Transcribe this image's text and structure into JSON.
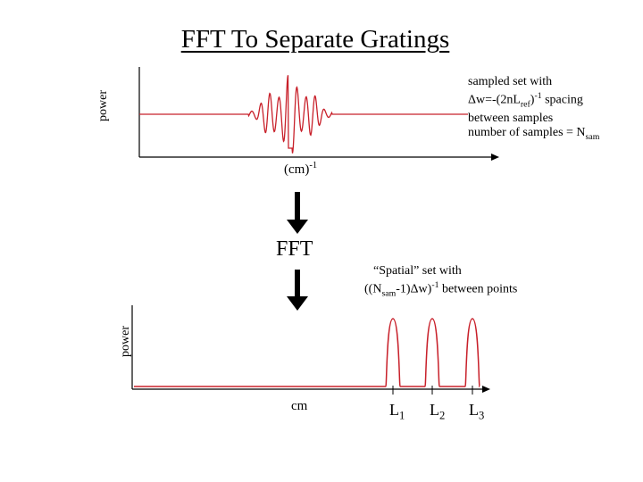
{
  "title": "FFT To Separate Gratings",
  "top_plot": {
    "ylabel": "power",
    "xunit": "(cm)",
    "xunit_sup": "-1",
    "annotation": {
      "line1": "sampled set with",
      "line2_a": "Δw=-(2nL",
      "line2_sub": "ref",
      "line2_b": ")",
      "line2_sup": "-1",
      "line2_c": " spacing",
      "line3": "between samples",
      "line4_a": "number of samples = N",
      "line4_sub": "sam"
    }
  },
  "fft_label": "FFT",
  "bottom_plot": {
    "ylabel": "power",
    "xunit": "cm",
    "annotation": {
      "line1": "“Spatial” set with",
      "line2_a": "((N",
      "line2_sub": "sam",
      "line2_b": "-1)Δw)",
      "line2_sup": "-1",
      "line2_c": " between points"
    },
    "peaks": [
      {
        "name": "L",
        "sub": "1"
      },
      {
        "name": "L",
        "sub": "2"
      },
      {
        "name": "L",
        "sub": "3"
      }
    ]
  },
  "colors": {
    "signal": "#c8202a",
    "axis": "#000000"
  }
}
